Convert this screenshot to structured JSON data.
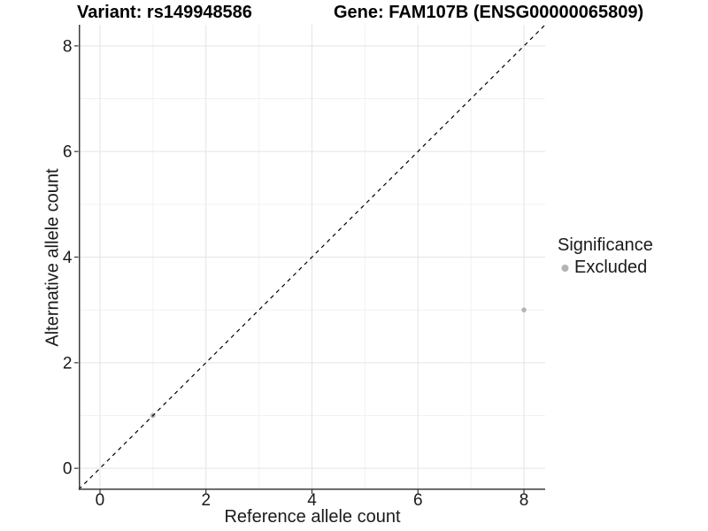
{
  "chart_data": {
    "type": "scatter",
    "title_left": "Variant: rs149948586",
    "title_right": "Gene: FAM107B (ENSG00000065809)",
    "xlabel": "Reference allele count",
    "ylabel": "Alternative allele count",
    "xlim": [
      -0.4,
      8.4
    ],
    "ylim": [
      -0.4,
      8.4
    ],
    "xticks": [
      0,
      2,
      4,
      6,
      8
    ],
    "yticks": [
      0,
      2,
      4,
      6,
      8
    ],
    "xticks_minor": [
      1,
      3,
      5,
      7
    ],
    "yticks_minor": [
      1,
      3,
      5,
      7
    ],
    "grid": true,
    "points": [
      {
        "x": 1,
        "y": 1,
        "series": "Excluded"
      },
      {
        "x": 8,
        "y": 3,
        "series": "Excluded"
      }
    ],
    "reference_line": {
      "type": "identity",
      "equation": "y = x",
      "style": "dashed",
      "color": "#000000"
    },
    "legend": {
      "title": "Significance",
      "position": "right",
      "items": [
        {
          "label": "Excluded",
          "color": "#b4b4b4"
        }
      ]
    },
    "colors": {
      "point_excluded": "#b4b4b4",
      "axis_line": "#3c3c3c",
      "tick_mark": "#333333",
      "tick_text": "#1a1a1a",
      "grid_major": "#e4e4e4",
      "grid_minor": "#f1f1f1",
      "background": "#ffffff"
    }
  }
}
